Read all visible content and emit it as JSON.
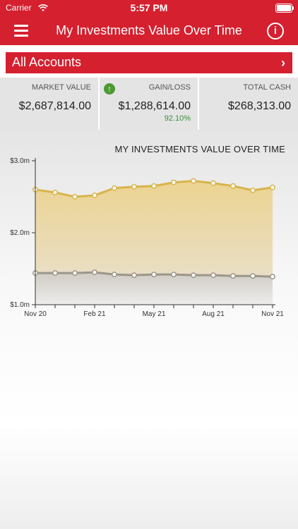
{
  "status_bar": {
    "carrier": "Carrier",
    "time": "5:57 PM"
  },
  "nav": {
    "title": "My Investments Value Over Time",
    "menu_icon": "hamburger-menu-icon",
    "info_icon": "info-icon"
  },
  "accounts": {
    "label": "All Accounts",
    "chevron": "›"
  },
  "summary": {
    "market_value": {
      "label": "MARKET VALUE",
      "value": "$2,687,814.00"
    },
    "gain_loss": {
      "label": "GAIN/LOSS",
      "value": "$1,288,614.00",
      "percent": "92.10%",
      "icon": "up-arrow-icon"
    },
    "total_cash": {
      "label": "TOTAL CASH",
      "value": "$268,313.00"
    }
  },
  "colors": {
    "brand": "#d4202f",
    "gold": "#d8b44a",
    "gray_line": "#9b958a",
    "gain_green": "#4c9a31"
  },
  "chart_data": {
    "type": "area",
    "title": "MY INVESTMENTS VALUE OVER TIME",
    "x_ticks": [
      "Nov 20",
      "Feb 21",
      "May 21",
      "Aug 21",
      "Nov 21"
    ],
    "y_ticks": [
      "$3.0m",
      "$2.0m",
      "$1.0m"
    ],
    "ylim": [
      1.0,
      3.0
    ],
    "grid": false,
    "series": [
      {
        "values": [
          2.6,
          2.56,
          2.5,
          2.52,
          2.62,
          2.64,
          2.65,
          2.7,
          2.72,
          2.69,
          2.65,
          2.59,
          2.63
        ]
      },
      {
        "values": [
          1.44,
          1.44,
          1.44,
          1.45,
          1.42,
          1.41,
          1.42,
          1.42,
          1.41,
          1.41,
          1.4,
          1.4,
          1.39
        ]
      }
    ]
  }
}
